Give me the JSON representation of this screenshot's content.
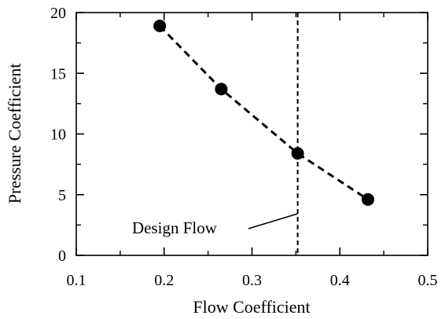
{
  "chart_data": {
    "type": "scatter",
    "xlabel": "Flow Coefficient",
    "ylabel": "Pressure Coefficient",
    "xlim": [
      0.1,
      0.5
    ],
    "ylim": [
      0,
      20
    ],
    "x_ticks": [
      "0.1",
      "0.2",
      "0.3",
      "0.4",
      "0.5"
    ],
    "y_ticks": [
      "0",
      "5",
      "10",
      "15",
      "20"
    ],
    "grid": false,
    "series": [
      {
        "style": "markers with dashed connecting line",
        "color": "#000000",
        "points": [
          {
            "x": 0.195,
            "y": 18.9
          },
          {
            "x": 0.265,
            "y": 13.7
          },
          {
            "x": 0.352,
            "y": 8.4
          },
          {
            "x": 0.432,
            "y": 4.6
          }
        ]
      }
    ],
    "reference_line": {
      "x": 0.352,
      "style": "dashed vertical"
    },
    "annotation": {
      "text": "Design Flow",
      "points_to": "reference_line"
    }
  }
}
